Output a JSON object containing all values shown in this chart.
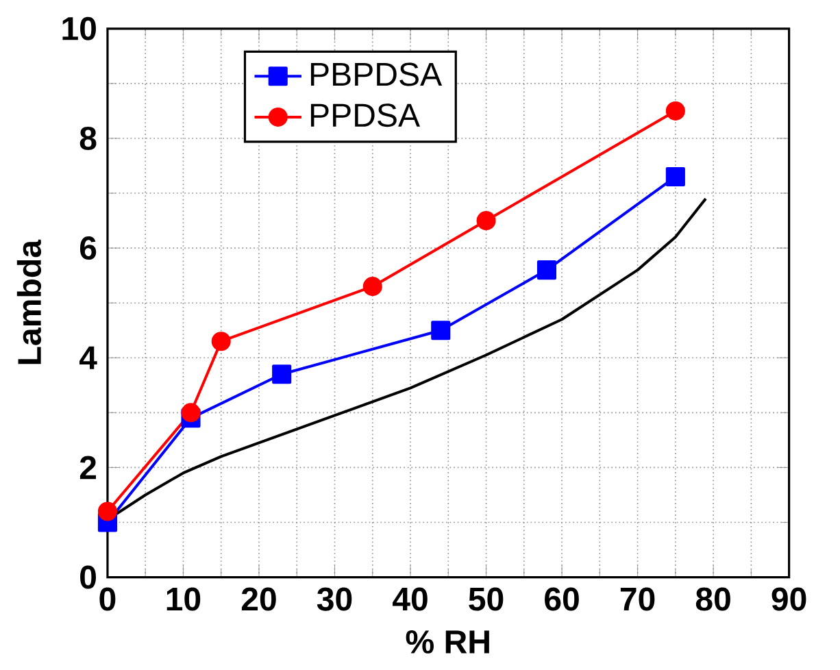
{
  "chart_data": {
    "type": "line",
    "xlabel": "% RH",
    "ylabel": "Lambda",
    "xlim": [
      0,
      90
    ],
    "ylim": [
      0,
      10
    ],
    "xticks": [
      0,
      10,
      20,
      30,
      40,
      50,
      60,
      70,
      80,
      90
    ],
    "yticks": [
      0,
      2,
      4,
      6,
      8,
      10
    ],
    "grid": true,
    "legend": "top left",
    "series": [
      {
        "name": "PBPDSA",
        "color": "#0000ff",
        "marker": "square",
        "x": [
          0,
          11,
          23,
          44,
          58,
          75
        ],
        "values": [
          1.0,
          2.9,
          3.7,
          4.5,
          5.6,
          7.3
        ]
      },
      {
        "name": "PPDSA",
        "color": "#ff0000",
        "marker": "circle",
        "x": [
          0,
          11,
          15,
          35,
          50,
          75
        ],
        "values": [
          1.2,
          3.0,
          4.3,
          5.3,
          6.5,
          8.5
        ]
      },
      {
        "color": "#000000",
        "marker": "none",
        "x": [
          0,
          5,
          10,
          15,
          20,
          30,
          40,
          45,
          50,
          60,
          70,
          75,
          79
        ],
        "values": [
          1.05,
          1.5,
          1.9,
          2.2,
          2.45,
          2.95,
          3.45,
          3.75,
          4.05,
          4.7,
          5.6,
          6.2,
          6.9
        ]
      }
    ]
  }
}
